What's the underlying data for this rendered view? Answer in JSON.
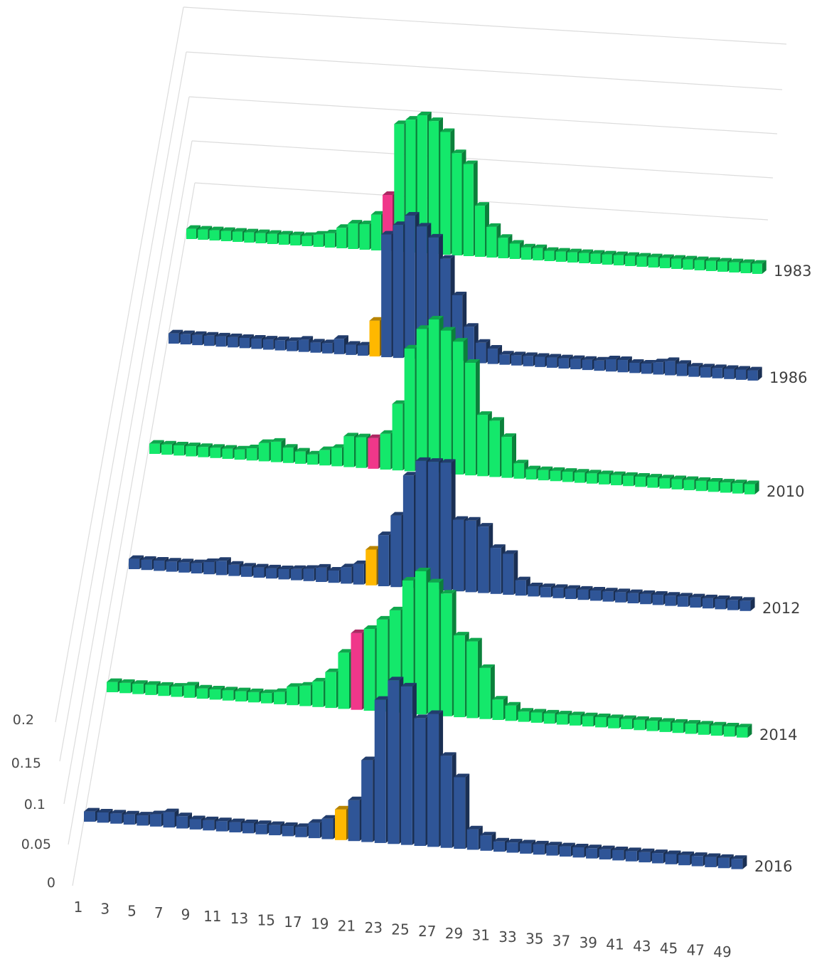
{
  "chart_data": {
    "type": "bar",
    "subtype": "3d-column",
    "title": "",
    "xlabel": "",
    "ylabel": "",
    "ylim": [
      0,
      0.2
    ],
    "y_ticks": [
      "0",
      "0.05",
      "0.1",
      "0.15",
      "0.2"
    ],
    "x_ticks": [
      "1",
      "3",
      "5",
      "7",
      "9",
      "11",
      "13",
      "15",
      "17",
      "19",
      "21",
      "23",
      "25",
      "27",
      "29",
      "31",
      "33",
      "35",
      "37",
      "39",
      "41",
      "43",
      "45",
      "47",
      "49"
    ],
    "categories": [
      1,
      2,
      3,
      4,
      5,
      6,
      7,
      8,
      9,
      10,
      11,
      12,
      13,
      14,
      15,
      16,
      17,
      18,
      19,
      20,
      21,
      22,
      23,
      24,
      25,
      26,
      27,
      28,
      29,
      30,
      31,
      32,
      33,
      34,
      35,
      36,
      37,
      38,
      39,
      40,
      41,
      42,
      43,
      44,
      45,
      46,
      47,
      48,
      49,
      50
    ],
    "colors": {
      "green": "#14e86b",
      "blue": "#2f5597",
      "pink": "#f0378a",
      "orange": "#ffb800"
    },
    "series": [
      {
        "name": "1983",
        "color": "green",
        "highlight_index": 17,
        "highlight_color": "pink",
        "values": [
          0.01,
          0.01,
          0.01,
          0.01,
          0.01,
          0.01,
          0.01,
          0.01,
          0.01,
          0.01,
          0.01,
          0.012,
          0.014,
          0.02,
          0.025,
          0.025,
          0.035,
          0.055,
          0.125,
          0.13,
          0.135,
          0.13,
          0.12,
          0.1,
          0.09,
          0.05,
          0.03,
          0.02,
          0.015,
          0.012,
          0.012,
          0.01,
          0.01,
          0.01,
          0.01,
          0.01,
          0.01,
          0.01,
          0.01,
          0.01,
          0.01,
          0.01,
          0.01,
          0.01,
          0.01,
          0.01,
          0.01,
          0.01,
          0.01,
          0.01
        ]
      },
      {
        "name": "1986",
        "color": "blue",
        "highlight_index": 17,
        "highlight_color": "orange",
        "values": [
          0.01,
          0.01,
          0.01,
          0.01,
          0.01,
          0.01,
          0.01,
          0.01,
          0.01,
          0.01,
          0.01,
          0.012,
          0.01,
          0.01,
          0.015,
          0.01,
          0.01,
          0.035,
          0.12,
          0.13,
          0.14,
          0.13,
          0.12,
          0.1,
          0.065,
          0.035,
          0.02,
          0.015,
          0.01,
          0.01,
          0.01,
          0.01,
          0.01,
          0.01,
          0.01,
          0.01,
          0.01,
          0.012,
          0.012,
          0.01,
          0.01,
          0.012,
          0.014,
          0.012,
          0.01,
          0.01,
          0.01,
          0.01,
          0.01,
          0.01
        ]
      },
      {
        "name": "2010",
        "color": "green",
        "highlight_index": 18,
        "highlight_color": "pink",
        "values": [
          0.01,
          0.01,
          0.01,
          0.01,
          0.01,
          0.01,
          0.01,
          0.01,
          0.012,
          0.018,
          0.02,
          0.015,
          0.012,
          0.01,
          0.015,
          0.018,
          0.03,
          0.03,
          0.03,
          0.035,
          0.065,
          0.12,
          0.14,
          0.15,
          0.14,
          0.13,
          0.11,
          0.06,
          0.055,
          0.04,
          0.015,
          0.01,
          0.01,
          0.01,
          0.01,
          0.01,
          0.01,
          0.01,
          0.01,
          0.01,
          0.01,
          0.01,
          0.01,
          0.01,
          0.01,
          0.01,
          0.01,
          0.01,
          0.01,
          0.01
        ]
      },
      {
        "name": "2012",
        "color": "blue",
        "highlight_index": 19,
        "highlight_color": "orange",
        "values": [
          0.01,
          0.01,
          0.01,
          0.01,
          0.01,
          0.01,
          0.012,
          0.014,
          0.011,
          0.01,
          0.01,
          0.01,
          0.01,
          0.011,
          0.012,
          0.014,
          0.012,
          0.016,
          0.02,
          0.035,
          0.05,
          0.07,
          0.11,
          0.125,
          0.125,
          0.125,
          0.07,
          0.07,
          0.065,
          0.045,
          0.04,
          0.015,
          0.01,
          0.01,
          0.01,
          0.01,
          0.01,
          0.01,
          0.01,
          0.01,
          0.01,
          0.01,
          0.01,
          0.01,
          0.01,
          0.01,
          0.01,
          0.01,
          0.01,
          0.01
        ]
      },
      {
        "name": "2014",
        "color": "green",
        "highlight_index": 19,
        "highlight_color": "pink",
        "values": [
          0.01,
          0.01,
          0.01,
          0.01,
          0.01,
          0.01,
          0.012,
          0.01,
          0.01,
          0.01,
          0.01,
          0.01,
          0.01,
          0.012,
          0.018,
          0.02,
          0.025,
          0.035,
          0.055,
          0.075,
          0.08,
          0.09,
          0.1,
          0.13,
          0.14,
          0.13,
          0.12,
          0.08,
          0.075,
          0.05,
          0.02,
          0.015,
          0.01,
          0.01,
          0.01,
          0.01,
          0.01,
          0.01,
          0.01,
          0.01,
          0.01,
          0.01,
          0.01,
          0.01,
          0.01,
          0.01,
          0.01,
          0.01,
          0.01,
          0.01
        ]
      },
      {
        "name": "2016",
        "color": "blue",
        "highlight_index": 19,
        "highlight_color": "orange",
        "values": [
          0.01,
          0.01,
          0.01,
          0.01,
          0.01,
          0.012,
          0.015,
          0.012,
          0.01,
          0.01,
          0.01,
          0.01,
          0.01,
          0.01,
          0.01,
          0.01,
          0.01,
          0.015,
          0.02,
          0.03,
          0.04,
          0.08,
          0.14,
          0.16,
          0.155,
          0.125,
          0.13,
          0.09,
          0.07,
          0.02,
          0.015,
          0.01,
          0.01,
          0.01,
          0.01,
          0.01,
          0.01,
          0.01,
          0.01,
          0.01,
          0.01,
          0.01,
          0.01,
          0.01,
          0.01,
          0.01,
          0.01,
          0.01,
          0.01,
          0.01
        ]
      }
    ],
    "grid": true,
    "legend": "series labels at right end of each row"
  }
}
